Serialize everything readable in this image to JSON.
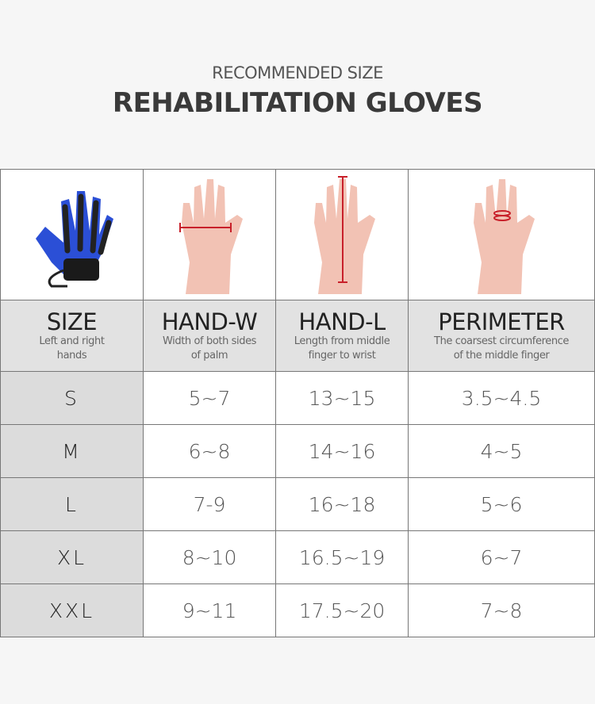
{
  "header": {
    "subtitle": "RECOMMENDED SIZE",
    "title": "REHABILITATION GLOVES"
  },
  "images": [
    {
      "icon": "rehab-glove-image"
    },
    {
      "icon": "hand-width-image"
    },
    {
      "icon": "hand-length-image"
    },
    {
      "icon": "finger-perimeter-image"
    }
  ],
  "columns": [
    {
      "title": "SIZE",
      "desc1": "Left and right",
      "desc2": "hands"
    },
    {
      "title": "HAND-W",
      "desc1": "Width of both sides",
      "desc2": "of palm"
    },
    {
      "title": "HAND-L",
      "desc1": "Length from middle",
      "desc2": "finger to wrist"
    },
    {
      "title": "PERIMETER",
      "desc1": "The coarsest circumference",
      "desc2": "of the middle finger"
    }
  ],
  "rows": [
    [
      "S",
      "5~7",
      "13~15",
      "3.5~4.5"
    ],
    [
      "M",
      "6~8",
      "14~16",
      "4~5"
    ],
    [
      "L",
      "7-9",
      "16~18",
      "5~6"
    ],
    [
      "XL",
      "8~10",
      "16.5~19",
      "6~7"
    ],
    [
      "XXL",
      "9~11",
      "17.5~20",
      "7~8"
    ]
  ],
  "colors": {
    "glove": "#2b4fd6",
    "measure": "#c8202a",
    "skin": "#f2c2b4"
  }
}
